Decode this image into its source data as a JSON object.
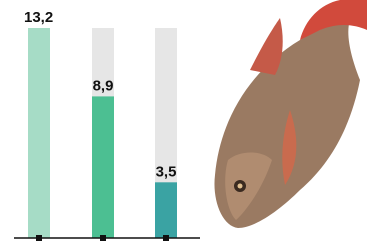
{
  "chart_data": {
    "type": "bar",
    "categories": [
      null,
      null,
      null
    ],
    "values": [
      13.2,
      8.9,
      3.5
    ],
    "value_labels": [
      "13,2",
      "8,9",
      "3,5"
    ],
    "colors": [
      "#a6dcc6",
      "#4cbf92",
      "#3aa3a3"
    ],
    "track_color": "#e6e6e6",
    "ylim": [
      0,
      13.2
    ]
  }
}
